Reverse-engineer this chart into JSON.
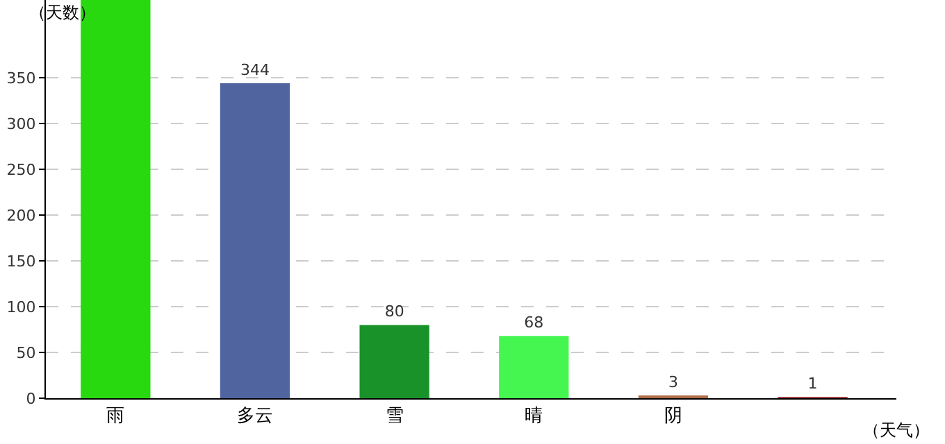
{
  "chart_data": {
    "type": "bar",
    "xlabel": "（天气）",
    "ylabel": "（天数）",
    "categories": [
      "雨",
      "多云",
      "雪",
      "晴",
      "阴",
      null
    ],
    "values": [
      435,
      344,
      80,
      68,
      3,
      1
    ],
    "colors": [
      "#29d90f",
      "#5064a0",
      "#19922a",
      "#46f650",
      "#b06e46",
      "#a04040"
    ],
    "value_labels": [
      null,
      "344",
      "80",
      "68",
      "3",
      "1"
    ],
    "ylim": [
      0,
      435
    ],
    "yticks": [
      0,
      50,
      100,
      150,
      200,
      250,
      300,
      350
    ],
    "grid": "y"
  }
}
